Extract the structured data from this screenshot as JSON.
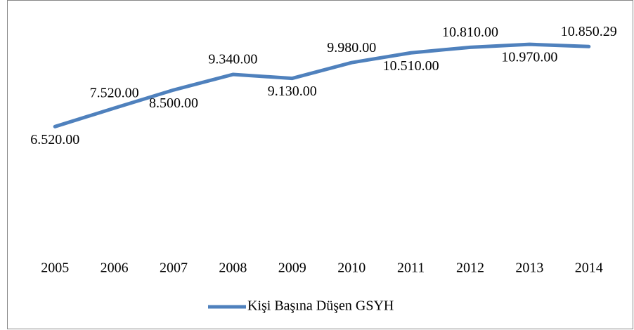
{
  "chart_data": {
    "type": "line",
    "categories": [
      "2005",
      "2006",
      "2007",
      "2008",
      "2009",
      "2010",
      "2011",
      "2012",
      "2013",
      "2014"
    ],
    "series": [
      {
        "name": "Kişi Başına Düşen GSYH",
        "color": "#4f81bd",
        "values": [
          6520,
          7520,
          8500,
          9340,
          9130,
          9980,
          10510,
          10810,
          10970,
          10850.29
        ],
        "value_labels": [
          "6.520.00",
          "7.520.00",
          "8.500.00",
          "9.340.00",
          "9.130.00",
          "9.980.00",
          "10.510.00",
          "10.810.00",
          "10.970.00",
          "10.850.29"
        ]
      }
    ],
    "ylim": [
      0,
      12000
    ],
    "grid": false,
    "legend": "bottom"
  }
}
